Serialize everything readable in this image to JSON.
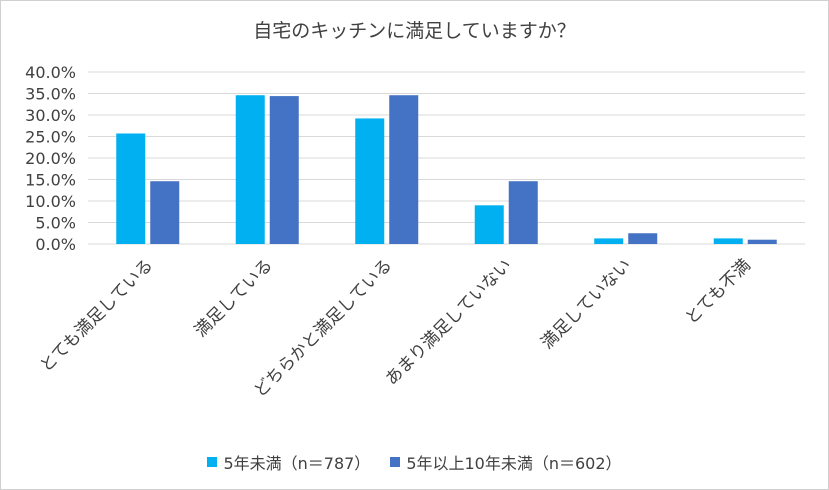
{
  "chart_data": {
    "type": "bar",
    "title": "自宅のキッチンに満足していますか？",
    "categories": [
      "とても満足している",
      "満足している",
      "どちらかと満足している",
      "あまり満足していない",
      "満足していない",
      "とても不満"
    ],
    "series": [
      {
        "name": "5年未満（n＝787）",
        "color": "#00b0f0",
        "values": [
          25.7,
          34.6,
          29.2,
          9.0,
          1.3,
          1.3
        ]
      },
      {
        "name": "5年以上10年未満（n＝602）",
        "color": "#4472c4",
        "values": [
          14.6,
          34.4,
          34.6,
          14.6,
          2.5,
          1.0
        ]
      }
    ],
    "yticks": [
      "0.0%",
      "5.0%",
      "10.0%",
      "15.0%",
      "20.0%",
      "25.0%",
      "30.0%",
      "35.0%",
      "40.0%"
    ],
    "ylim": [
      0,
      40
    ],
    "xlabel": "",
    "ylabel": "",
    "legend_position": "bottom"
  }
}
